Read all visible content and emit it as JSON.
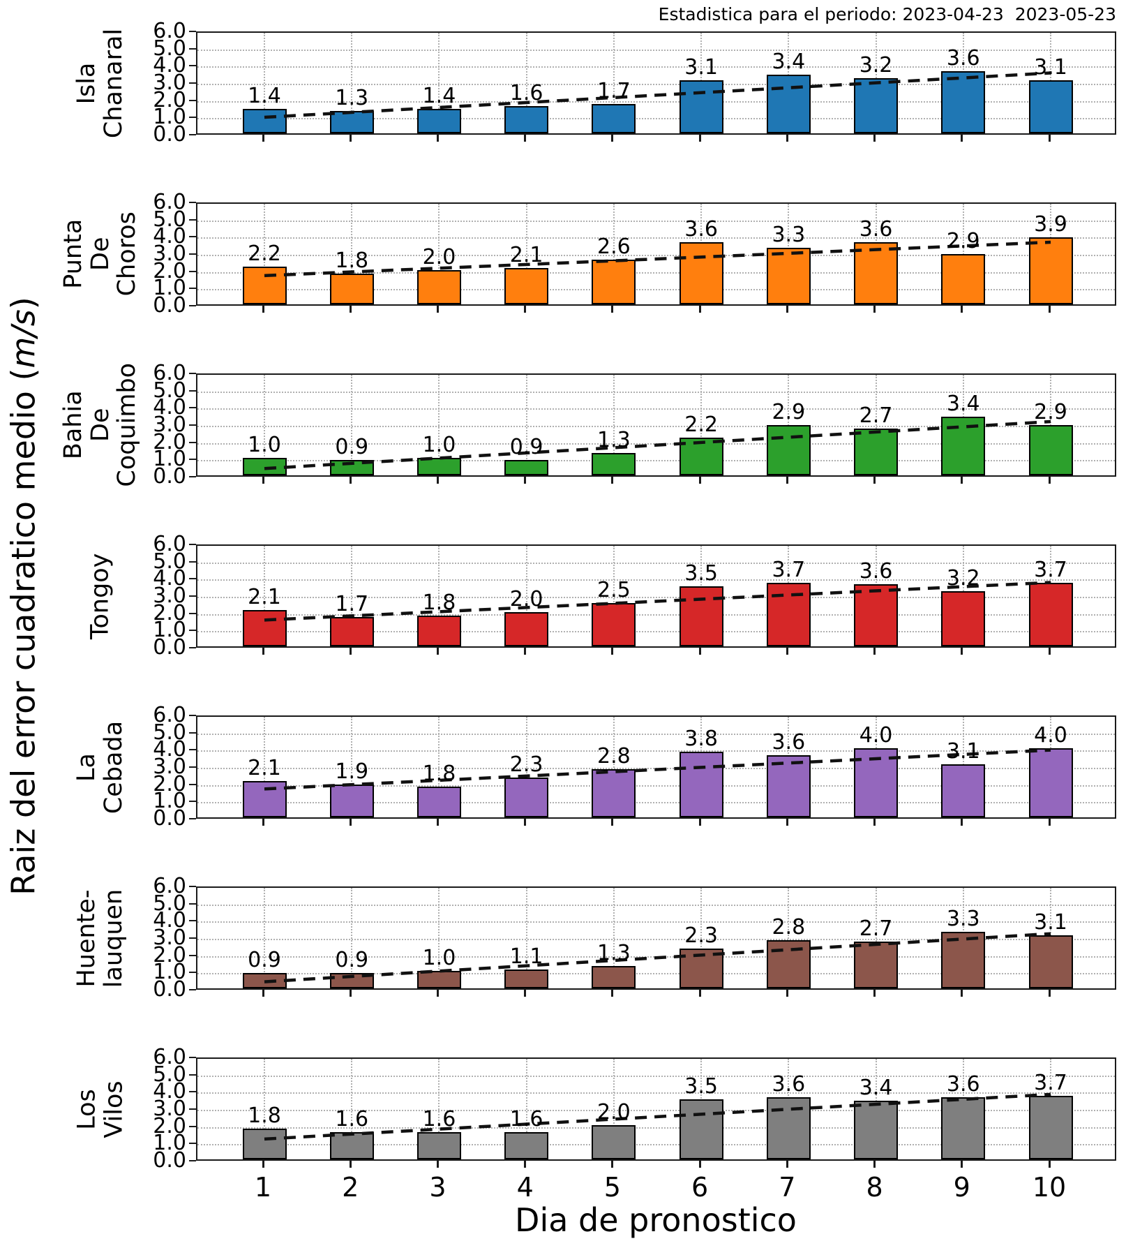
{
  "chart_data": {
    "type": "bar",
    "title": "Estadistica para el periodo: 2023-04-23  2023-05-23",
    "xlabel": "Dia de pronostico",
    "ylabel": "Raiz del error cuadratico medio (m/s)",
    "ylabel_parts": {
      "before": "Raiz del error cuadratico medio (",
      "math": "m/s",
      "after": ")"
    },
    "x": [
      1,
      2,
      3,
      4,
      5,
      6,
      7,
      8,
      9,
      10
    ],
    "ylim": [
      0,
      6
    ],
    "yticks": [
      "6.0",
      "5.0",
      "4.0",
      "3.0",
      "2.0",
      "1.0",
      "0.0"
    ],
    "grid": true,
    "trendline": "linear-fit-dashed-black",
    "legend_position": "none",
    "panels": [
      {
        "label": "Isla Chanaral",
        "label_lines": [
          "Isla",
          "Chanaral"
        ],
        "color": "#1f77b4",
        "values": [
          1.4,
          1.3,
          1.4,
          1.6,
          1.7,
          3.1,
          3.4,
          3.2,
          3.6,
          3.1
        ]
      },
      {
        "label": "Punta De Choros",
        "label_lines": [
          "Punta",
          "De",
          "Choros"
        ],
        "color": "#ff7f0e",
        "values": [
          2.2,
          1.8,
          2.0,
          2.1,
          2.6,
          3.6,
          3.3,
          3.6,
          2.9,
          3.9
        ]
      },
      {
        "label": "Bahia De Coquimbo",
        "label_lines": [
          "Bahia",
          "De",
          "Coquimbo"
        ],
        "color": "#2ca02c",
        "values": [
          1.0,
          0.9,
          1.0,
          0.9,
          1.3,
          2.2,
          2.9,
          2.7,
          3.4,
          2.9
        ]
      },
      {
        "label": "Tongoy",
        "label_lines": [
          "Tongoy"
        ],
        "color": "#d62728",
        "values": [
          2.1,
          1.7,
          1.8,
          2.0,
          2.5,
          3.5,
          3.7,
          3.6,
          3.2,
          3.7
        ]
      },
      {
        "label": "La Cebada",
        "label_lines": [
          "La",
          "Cebada"
        ],
        "color": "#9467bd",
        "values": [
          2.1,
          1.9,
          1.8,
          2.3,
          2.8,
          3.8,
          3.6,
          4.0,
          3.1,
          4.0
        ]
      },
      {
        "label": "Huente-lauquen",
        "label_lines": [
          "Huente-",
          "lauquen"
        ],
        "color": "#8c564b",
        "values": [
          0.9,
          0.9,
          1.0,
          1.1,
          1.3,
          2.3,
          2.8,
          2.7,
          3.3,
          3.1
        ]
      },
      {
        "label": "Los Vilos",
        "label_lines": [
          "Los",
          "Vilos"
        ],
        "color": "#7f7f7f",
        "values": [
          1.8,
          1.6,
          1.6,
          1.6,
          2.0,
          3.5,
          3.6,
          3.4,
          3.6,
          3.7
        ]
      }
    ]
  }
}
